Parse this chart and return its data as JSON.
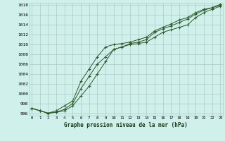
{
  "title": "Graphe pression niveau de la mer (hPa)",
  "bg_color": "#cff0eb",
  "grid_color": "#b0c8c4",
  "line_color": "#2d5a2d",
  "x_ticks": [
    0,
    1,
    2,
    3,
    4,
    5,
    6,
    7,
    8,
    9,
    10,
    11,
    12,
    13,
    14,
    15,
    16,
    17,
    18,
    19,
    20,
    21,
    22,
    23
  ],
  "ylim": [
    995.5,
    1018.5
  ],
  "yticks": [
    996,
    998,
    1000,
    1002,
    1004,
    1006,
    1008,
    1010,
    1012,
    1014,
    1016,
    1018
  ],
  "series1": [
    997.0,
    996.5,
    996.0,
    996.2,
    996.5,
    997.5,
    999.5,
    1001.5,
    1004.0,
    1006.5,
    1009.0,
    1009.5,
    1010.0,
    1010.2,
    1010.5,
    1011.5,
    1012.5,
    1013.0,
    1013.5,
    1014.0,
    1015.5,
    1016.5,
    1017.2,
    1017.8
  ],
  "series2": [
    997.0,
    996.5,
    996.0,
    996.2,
    996.8,
    998.0,
    1001.0,
    1003.5,
    1006.0,
    1007.5,
    1009.0,
    1009.5,
    1010.2,
    1010.5,
    1011.0,
    1012.5,
    1013.2,
    1013.8,
    1014.5,
    1015.2,
    1016.2,
    1017.0,
    1017.5,
    1018.0
  ],
  "series3": [
    997.0,
    996.5,
    996.0,
    996.5,
    997.5,
    998.5,
    1002.5,
    1005.0,
    1007.5,
    1009.5,
    1010.0,
    1010.2,
    1010.5,
    1011.0,
    1011.5,
    1012.8,
    1013.5,
    1014.2,
    1015.0,
    1015.5,
    1016.5,
    1017.2,
    1017.5,
    1018.2
  ]
}
